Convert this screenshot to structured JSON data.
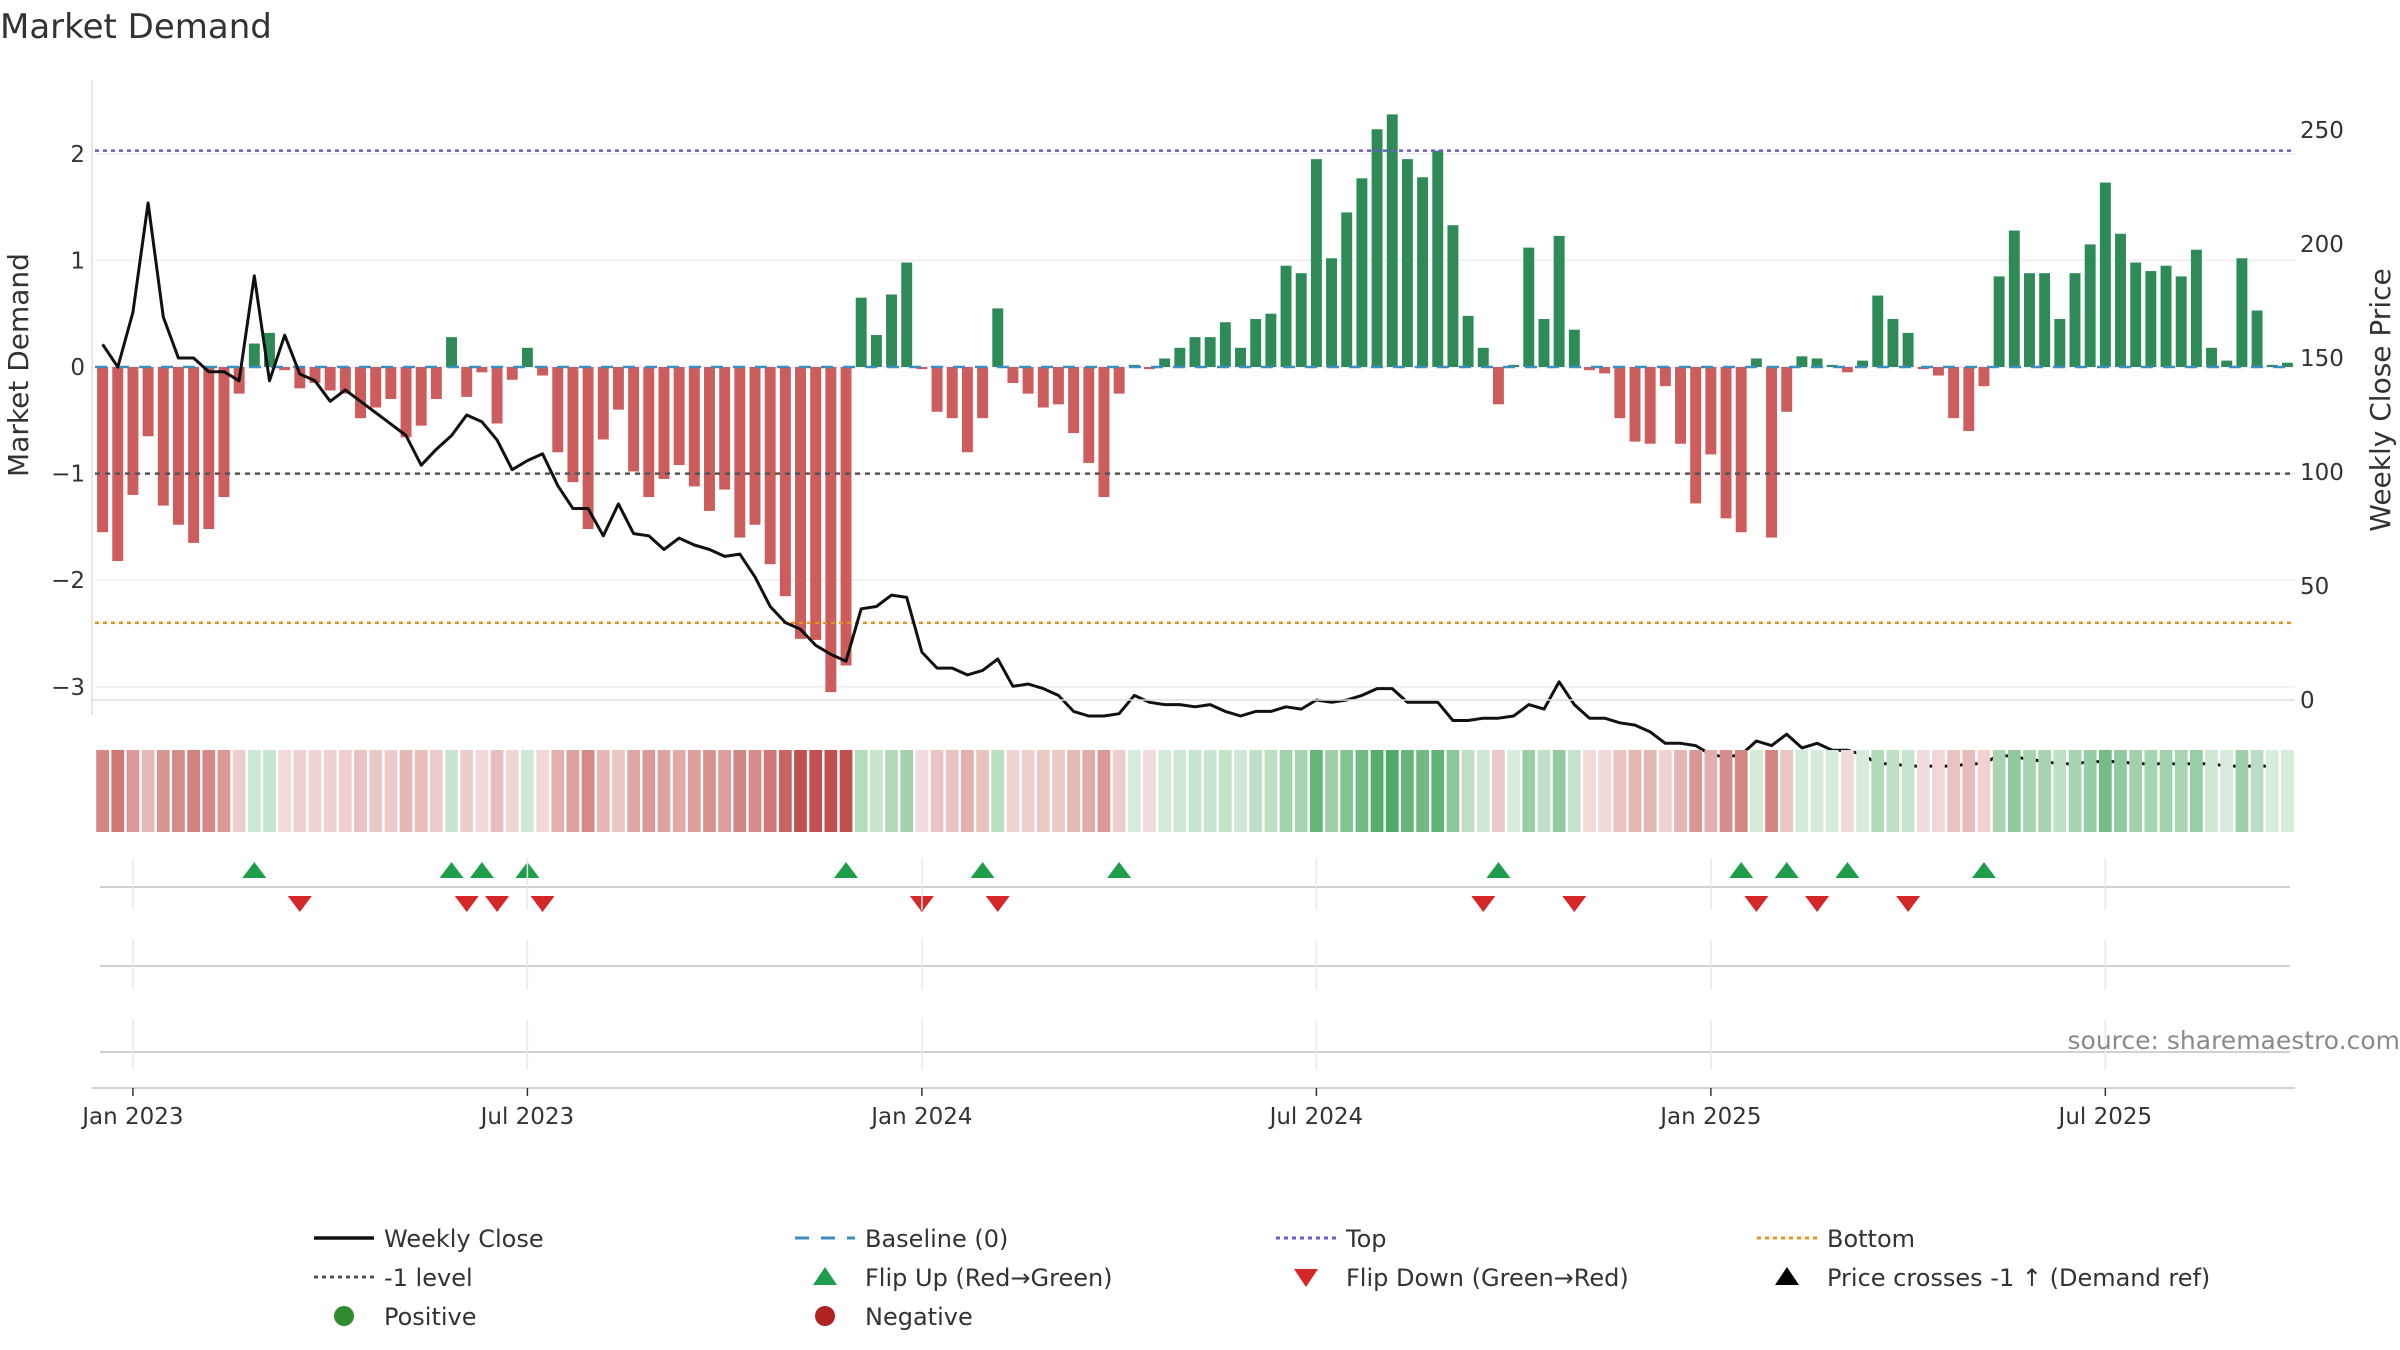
{
  "chart_data": {
    "type": "bar",
    "title": "Market Demand",
    "ylabel": "Market Demand",
    "ylabel_right": "Weekly Close Price",
    "source": "source: sharemaestro.com",
    "ylim": [
      -3.1,
      2.5
    ],
    "ylim_right": [
      0,
      260
    ],
    "left_ticks": [
      {
        "value": 2,
        "label": "2"
      },
      {
        "value": 1,
        "label": "1"
      },
      {
        "value": 0,
        "label": "0"
      },
      {
        "value": -1,
        "label": "−1"
      },
      {
        "value": -2,
        "label": "−2"
      },
      {
        "value": -3,
        "label": "−3"
      }
    ],
    "right_ticks": [
      {
        "value": 250,
        "label": "250"
      },
      {
        "value": 200,
        "label": "200"
      },
      {
        "value": 150,
        "label": "150"
      },
      {
        "value": 100,
        "label": "100"
      },
      {
        "value": 50,
        "label": "50"
      },
      {
        "value": 0,
        "label": "0"
      }
    ],
    "x_ticks": [
      {
        "week": 2,
        "label": "Jan 2023"
      },
      {
        "week": 28,
        "label": "Jul 2023"
      },
      {
        "week": 54,
        "label": "Jan 2024"
      },
      {
        "week": 80,
        "label": "Jul 2024"
      },
      {
        "week": 106,
        "label": "Jan 2025"
      },
      {
        "week": 132,
        "label": "Jul 2025"
      }
    ],
    "reference_lines": {
      "top": 2.03,
      "bottom": -2.4,
      "minus_one": -1,
      "baseline": 0
    },
    "demand": [
      -1.55,
      -1.82,
      -1.2,
      -0.65,
      -1.3,
      -1.48,
      -1.65,
      -1.52,
      -1.22,
      -0.25,
      0.22,
      0.32,
      -0.03,
      -0.2,
      -0.15,
      -0.22,
      -0.25,
      -0.48,
      -0.38,
      -0.3,
      -0.66,
      -0.55,
      -0.3,
      0.28,
      -0.28,
      -0.05,
      -0.53,
      -0.12,
      0.18,
      -0.08,
      -0.8,
      -1.08,
      -1.52,
      -0.68,
      -0.4,
      -0.98,
      -1.22,
      -1.05,
      -0.92,
      -1.12,
      -1.35,
      -1.15,
      -1.6,
      -1.48,
      -1.85,
      -2.15,
      -2.55,
      -2.56,
      -3.05,
      -2.8,
      0.65,
      0.3,
      0.68,
      0.98,
      -0.02,
      -0.42,
      -0.48,
      -0.8,
      -0.48,
      0.55,
      -0.15,
      -0.25,
      -0.38,
      -0.35,
      -0.62,
      -0.9,
      -1.22,
      -0.25,
      0.02,
      -0.02,
      0.08,
      0.18,
      0.28,
      0.28,
      0.42,
      0.18,
      0.45,
      0.5,
      0.95,
      0.88,
      1.95,
      1.02,
      1.45,
      1.77,
      2.23,
      2.37,
      1.95,
      1.78,
      2.03,
      1.33,
      0.48,
      0.18,
      -0.35,
      0.02,
      1.12,
      0.45,
      1.23,
      0.35,
      -0.03,
      -0.06,
      -0.48,
      -0.7,
      -0.72,
      -0.18,
      -0.72,
      -1.28,
      -0.82,
      -1.42,
      -1.55,
      0.08,
      -1.6,
      -0.42,
      0.1,
      0.08,
      0.02,
      -0.05,
      0.06,
      0.67,
      0.45,
      0.32,
      -0.02,
      -0.08,
      -0.48,
      -0.6,
      -0.18,
      0.85,
      1.28,
      0.88,
      0.88,
      0.45,
      0.88,
      1.15,
      1.73,
      1.25,
      0.98,
      0.9,
      0.95,
      0.85,
      1.1,
      0.18,
      0.06,
      1.02,
      0.53,
      0.02,
      0.04
    ],
    "weekly_close": [
      156,
      146,
      170,
      218,
      168,
      150,
      150,
      144,
      144,
      140,
      186,
      140,
      160,
      143,
      140,
      131,
      136,
      131,
      126,
      121,
      116,
      103,
      110,
      116,
      125,
      122,
      114,
      101,
      105,
      108,
      94,
      84,
      84,
      72,
      86,
      73,
      72,
      66,
      71,
      68,
      66,
      63,
      64,
      54,
      41,
      34,
      31,
      24,
      20,
      17,
      40,
      41,
      46,
      45,
      21,
      14,
      14,
      11,
      13,
      18,
      6,
      7,
      5,
      2,
      -5,
      -7,
      -7,
      -6,
      2,
      -1,
      -2,
      -2,
      -3,
      -2,
      -5,
      -7,
      -5,
      -5,
      -3,
      -4,
      0,
      -1,
      0,
      2,
      5,
      5,
      -1,
      -1,
      -1,
      -9,
      -9,
      -8,
      -8,
      -7,
      -2,
      -4,
      8,
      -2,
      -8,
      -8,
      -10,
      -11,
      -14,
      -19,
      -19,
      -20,
      -24,
      -25,
      -24,
      -18,
      -20,
      -15,
      -21,
      -19,
      -22,
      -22,
      -24,
      -28,
      -28,
      -29,
      -29,
      -29,
      -29,
      -28,
      -28,
      -24,
      -25,
      -26,
      -27,
      -28,
      -28,
      -27,
      -27,
      -27,
      -28,
      -28,
      -28,
      -28,
      -28,
      -28,
      -29,
      -29,
      -29,
      -29
    ],
    "flip_up_weeks": [
      10,
      23,
      25,
      28,
      49,
      58,
      67,
      92,
      108,
      111,
      115,
      124
    ],
    "flip_down_weeks": [
      13,
      24,
      26,
      29,
      54,
      59,
      91,
      97,
      109,
      113,
      119
    ],
    "legend": [
      {
        "label": "Weekly Close",
        "symbol": "line-solid",
        "color": "#111111"
      },
      {
        "label": "Baseline (0)",
        "symbol": "line-dash",
        "color": "#3b8fc0"
      },
      {
        "label": "Top",
        "symbol": "line-dot",
        "color": "#6a5acd"
      },
      {
        "label": "Bottom",
        "symbol": "line-dot",
        "color": "#e69020"
      },
      {
        "label": "-1 level",
        "symbol": "line-dot",
        "color": "#555555"
      },
      {
        "label": "Flip Up (Red→Green)",
        "symbol": "triangle-up",
        "color": "#1e9e4a"
      },
      {
        "label": "Flip Down (Green→Red)",
        "symbol": "triangle-down",
        "color": "#d62728"
      },
      {
        "label": "Price crosses -1 ↑ (Demand ref)",
        "symbol": "triangle-up",
        "color": "#000000"
      },
      {
        "label": "Positive",
        "symbol": "circle",
        "color": "#2e8b2e"
      },
      {
        "label": "Negative",
        "symbol": "circle",
        "color": "#b22222"
      }
    ],
    "colors": {
      "positive": "#2e8b57",
      "negative": "#cd5c5c",
      "line": "#111111",
      "flip_up": "#1e9e4a",
      "flip_down": "#d62728"
    }
  }
}
